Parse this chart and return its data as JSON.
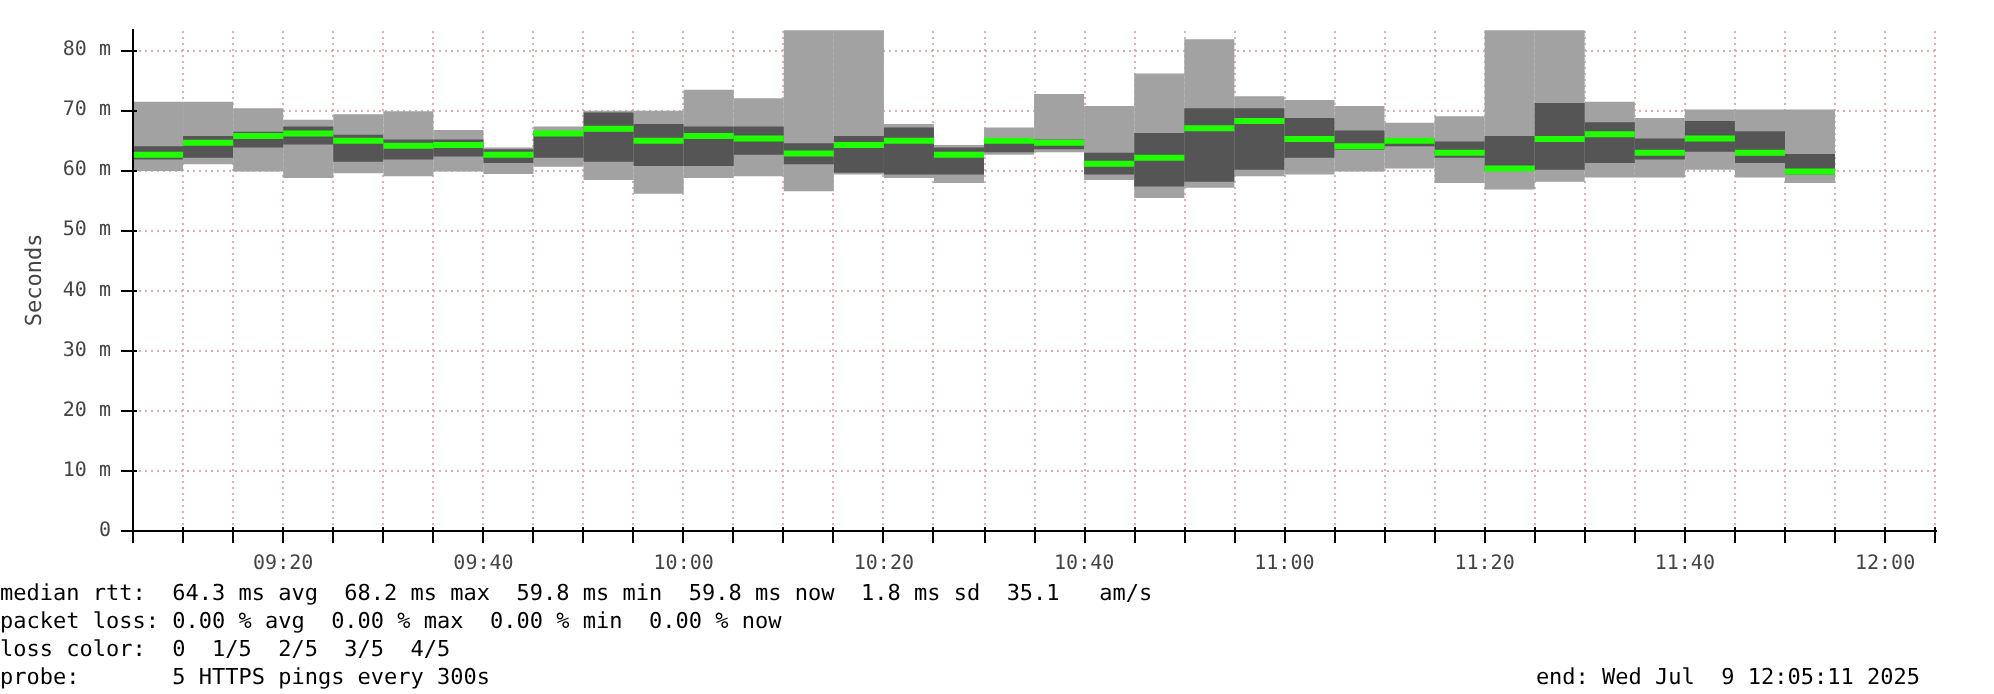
{
  "chart_data": {
    "type": "box",
    "ylabel": "Seconds",
    "x": [
      9.125,
      9.2083,
      9.2917,
      9.375,
      9.4583,
      9.5417,
      9.625,
      9.7083,
      9.7917,
      9.875,
      9.9583,
      10.0417,
      10.125,
      10.2083,
      10.2917,
      10.375,
      10.4583,
      10.5417,
      10.625,
      10.7083,
      10.7917,
      10.875,
      10.9583,
      11.0417,
      11.125,
      11.2083,
      11.2917,
      11.375,
      11.4583,
      11.5417,
      11.625,
      11.7083,
      11.7917,
      11.875
    ],
    "series": [
      {
        "color": "#555555",
        "boxes": [
          {
            "low": 59.9,
            "q1": 61.8,
            "median": 62.6,
            "q3": 64.0,
            "high": 71.4
          },
          {
            "low": 61.0,
            "q1": 62.1,
            "median": 64.6,
            "q3": 65.7,
            "high": 71.4
          },
          {
            "low": 59.8,
            "q1": 63.8,
            "median": 65.7,
            "q3": 66.4,
            "high": 70.3
          },
          {
            "low": 58.7,
            "q1": 64.3,
            "median": 66.1,
            "q3": 67.3,
            "high": 68.4
          },
          {
            "low": 59.5,
            "q1": 61.4,
            "median": 64.9,
            "q3": 65.9,
            "high": 69.3
          },
          {
            "low": 59.0,
            "q1": 61.8,
            "median": 64.1,
            "q3": 65.1,
            "high": 69.8
          },
          {
            "low": 59.8,
            "q1": 62.3,
            "median": 64.2,
            "q3": 65.1,
            "high": 66.7
          },
          {
            "low": 59.4,
            "q1": 61.2,
            "median": 62.6,
            "q3": 63.5,
            "high": 63.8
          },
          {
            "low": 60.6,
            "q1": 62.1,
            "median": 66.1,
            "q3": 66.5,
            "high": 67.3
          },
          {
            "low": 58.4,
            "q1": 61.4,
            "median": 66.9,
            "q3": 69.6,
            "high": 69.9
          },
          {
            "low": 56.1,
            "q1": 60.7,
            "median": 64.9,
            "q3": 67.7,
            "high": 69.9
          },
          {
            "low": 58.7,
            "q1": 60.7,
            "median": 65.7,
            "q3": 67.3,
            "high": 73.4
          },
          {
            "low": 59.0,
            "q1": 62.6,
            "median": 65.3,
            "q3": 67.3,
            "high": 72.0
          },
          {
            "low": 56.5,
            "q1": 61.0,
            "median": 62.8,
            "q3": 64.5,
            "high": 83.3
          },
          {
            "low": 59.3,
            "q1": 59.6,
            "median": 64.2,
            "q3": 65.7,
            "high": 83.3
          },
          {
            "low": 58.7,
            "q1": 59.3,
            "median": 64.9,
            "q3": 67.1,
            "high": 67.7
          },
          {
            "low": 57.9,
            "q1": 59.3,
            "median": 62.6,
            "q3": 63.8,
            "high": 64.2
          },
          {
            "low": 62.6,
            "q1": 63.0,
            "median": 64.9,
            "q3": 65.1,
            "high": 67.1
          },
          {
            "low": 63.0,
            "q1": 63.5,
            "median": 64.6,
            "q3": 65.1,
            "high": 72.7
          },
          {
            "low": 58.4,
            "q1": 59.3,
            "median": 61.1,
            "q3": 62.9,
            "high": 70.7
          },
          {
            "low": 55.4,
            "q1": 57.3,
            "median": 62.1,
            "q3": 66.2,
            "high": 76.1
          },
          {
            "low": 57.1,
            "q1": 58.1,
            "median": 67.0,
            "q3": 70.3,
            "high": 81.8
          },
          {
            "low": 59.0,
            "q1": 60.1,
            "median": 68.2,
            "q3": 70.3,
            "high": 72.3
          },
          {
            "low": 59.3,
            "q1": 62.1,
            "median": 65.2,
            "q3": 68.7,
            "high": 71.7
          },
          {
            "low": 59.8,
            "q1": 63.4,
            "median": 64.0,
            "q3": 66.6,
            "high": 70.7
          },
          {
            "low": 60.3,
            "q1": 64.0,
            "median": 64.9,
            "q3": 65.3,
            "high": 67.9
          },
          {
            "low": 57.9,
            "q1": 62.1,
            "median": 62.9,
            "q3": 64.8,
            "high": 69.0
          },
          {
            "low": 56.8,
            "q1": 59.9,
            "median": 60.3,
            "q3": 65.7,
            "high": 83.3
          },
          {
            "low": 58.1,
            "q1": 60.1,
            "median": 65.2,
            "q3": 71.2,
            "high": 83.3
          },
          {
            "low": 58.8,
            "q1": 61.2,
            "median": 66.0,
            "q3": 68.0,
            "high": 71.4
          },
          {
            "low": 58.8,
            "q1": 61.8,
            "median": 62.9,
            "q3": 65.3,
            "high": 68.7
          },
          {
            "low": 60.1,
            "q1": 63.1,
            "median": 65.3,
            "q3": 68.2,
            "high": 70.1
          },
          {
            "low": 58.8,
            "q1": 61.2,
            "median": 62.9,
            "q3": 66.5,
            "high": 70.1
          },
          {
            "low": 57.9,
            "q1": 59.3,
            "median": 59.8,
            "q3": 62.7,
            "high": 70.1
          }
        ]
      }
    ],
    "xlim": [
      9.0833,
      12.0864
    ],
    "ylim": [
      0,
      83.5
    ],
    "xticks": [
      {
        "value": 9.0833,
        "label": null
      },
      {
        "value": 9.1667,
        "label": null
      },
      {
        "value": 9.25,
        "label": null
      },
      {
        "value": 9.3333,
        "label": "09:20"
      },
      {
        "value": 9.4167,
        "label": null
      },
      {
        "value": 9.5,
        "label": null
      },
      {
        "value": 9.5833,
        "label": null
      },
      {
        "value": 9.6667,
        "label": "09:40"
      },
      {
        "value": 9.75,
        "label": null
      },
      {
        "value": 9.8333,
        "label": null
      },
      {
        "value": 9.9167,
        "label": null
      },
      {
        "value": 10.0,
        "label": "10:00"
      },
      {
        "value": 10.0833,
        "label": null
      },
      {
        "value": 10.1667,
        "label": null
      },
      {
        "value": 10.25,
        "label": null
      },
      {
        "value": 10.3333,
        "label": "10:20"
      },
      {
        "value": 10.4167,
        "label": null
      },
      {
        "value": 10.5,
        "label": null
      },
      {
        "value": 10.5833,
        "label": null
      },
      {
        "value": 10.6667,
        "label": "10:40"
      },
      {
        "value": 10.75,
        "label": null
      },
      {
        "value": 10.8333,
        "label": null
      },
      {
        "value": 10.9167,
        "label": null
      },
      {
        "value": 11.0,
        "label": "11:00"
      },
      {
        "value": 11.0833,
        "label": null
      },
      {
        "value": 11.1667,
        "label": null
      },
      {
        "value": 11.25,
        "label": null
      },
      {
        "value": 11.3333,
        "label": "11:20"
      },
      {
        "value": 11.4167,
        "label": null
      },
      {
        "value": 11.5,
        "label": null
      },
      {
        "value": 11.5833,
        "label": null
      },
      {
        "value": 11.6667,
        "label": "11:40"
      },
      {
        "value": 11.75,
        "label": null
      },
      {
        "value": 11.8333,
        "label": null
      },
      {
        "value": 11.9167,
        "label": null
      },
      {
        "value": 12.0,
        "label": "12:00"
      },
      {
        "value": 12.0833,
        "label": null
      }
    ],
    "yticks": [
      0,
      {
        "value": 10,
        "label": "10 m"
      },
      {
        "value": 20,
        "label": "20 m"
      },
      {
        "value": 30,
        "label": "30 m"
      },
      {
        "value": 40,
        "label": "40 m"
      },
      {
        "value": 50,
        "label": "50 m"
      },
      {
        "value": 60,
        "label": "60 m"
      },
      {
        "value": 70,
        "label": "70 m"
      },
      {
        "value": 80,
        "label": "80 m"
      }
    ],
    "grid": true,
    "annotations": [
      "median rtt:  64.3 ms avg  68.2 ms max  59.8 ms min  59.8 ms now  1.8 ms sd  35.1   am/s",
      "packet loss: 0.00 % avg  0.00 % max  0.00 % min  0.00 % now",
      "loss color:  0  1/5  2/5  3/5  4/5",
      "probe:       5 HTTPS pings every 300s",
      "end: Wed Jul  9 12:05:11 2025"
    ]
  }
}
